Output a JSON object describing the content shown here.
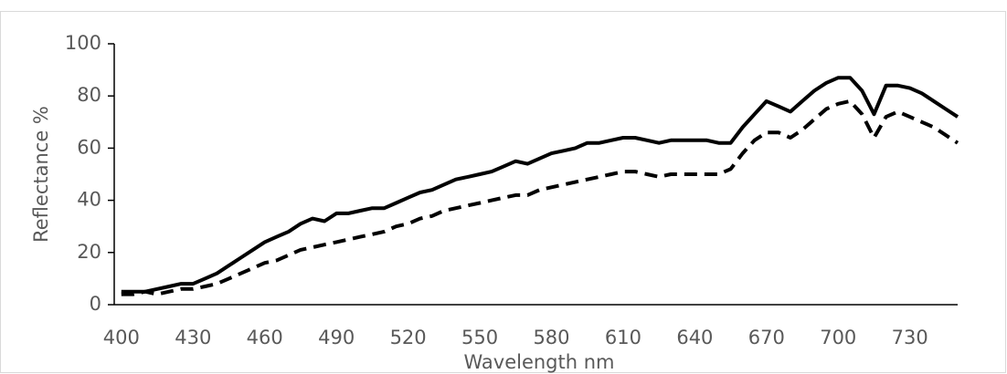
{
  "chart_data": {
    "type": "line",
    "y_label": "Reflectance %",
    "x_label": "Wavelength nm",
    "x": [
      400,
      405,
      410,
      415,
      420,
      425,
      430,
      435,
      440,
      445,
      450,
      455,
      460,
      465,
      470,
      475,
      480,
      485,
      490,
      495,
      500,
      505,
      510,
      515,
      520,
      525,
      530,
      535,
      540,
      545,
      550,
      555,
      560,
      565,
      570,
      575,
      580,
      585,
      590,
      595,
      600,
      605,
      610,
      615,
      620,
      625,
      630,
      635,
      640,
      645,
      650,
      655,
      660,
      665,
      670,
      675,
      680,
      685,
      690,
      695,
      700,
      705,
      710,
      715,
      720,
      725,
      730,
      735,
      740,
      745,
      750
    ],
    "series": [
      {
        "color": "#000000",
        "line_style": "solid",
        "values": [
          5,
          5,
          5,
          6,
          7,
          8,
          8,
          10,
          12,
          15,
          18,
          21,
          24,
          26,
          28,
          31,
          33,
          32,
          35,
          35,
          36,
          37,
          37,
          39,
          41,
          43,
          44,
          46,
          48,
          49,
          50,
          51,
          53,
          55,
          54,
          56,
          58,
          59,
          60,
          62,
          62,
          63,
          64,
          64,
          63,
          62,
          63,
          63,
          63,
          63,
          62,
          62,
          68,
          73,
          78,
          76,
          74,
          78,
          82,
          85,
          87,
          87,
          82,
          73,
          84,
          84,
          83,
          81,
          78,
          75,
          72
        ]
      },
      {
        "color": "#000000",
        "line_style": "dashed",
        "values": [
          4,
          4,
          5,
          4,
          5,
          6,
          6,
          7,
          8,
          10,
          12,
          14,
          16,
          17,
          19,
          21,
          22,
          23,
          24,
          25,
          26,
          27,
          28,
          30,
          31,
          33,
          34,
          36,
          37,
          38,
          39,
          40,
          41,
          42,
          42,
          44,
          45,
          46,
          47,
          48,
          49,
          50,
          51,
          51,
          50,
          49,
          50,
          50,
          50,
          50,
          50,
          52,
          58,
          63,
          66,
          66,
          64,
          67,
          71,
          75,
          77,
          78,
          73,
          64,
          72,
          74,
          72,
          70,
          68,
          65,
          62
        ]
      }
    ],
    "xlim": [
      397,
      750
    ],
    "xticks": [
      400,
      430,
      460,
      490,
      520,
      550,
      580,
      610,
      640,
      670,
      700,
      730
    ],
    "ylim": [
      0,
      100
    ],
    "yticks": [
      0,
      20,
      40,
      60,
      80,
      100
    ],
    "grid": false
  }
}
